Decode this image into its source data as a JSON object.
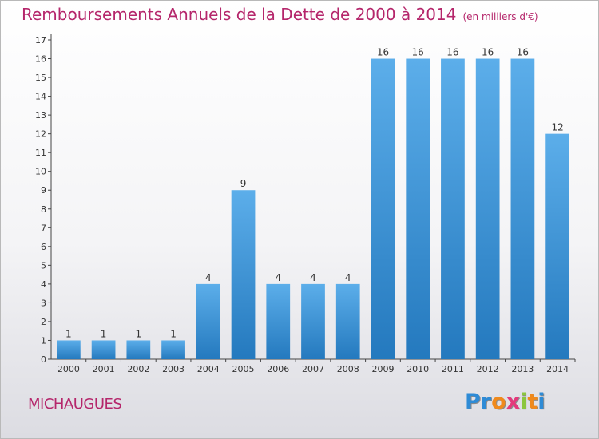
{
  "chart_data": {
    "type": "bar",
    "title": "Remboursements Annuels de la Dette de 2000 à 2014",
    "unit": "(en milliers d'€)",
    "categories": [
      "2000",
      "2001",
      "2002",
      "2003",
      "2004",
      "2005",
      "2006",
      "2007",
      "2008",
      "2009",
      "2010",
      "2011",
      "2012",
      "2013",
      "2014"
    ],
    "values": [
      1,
      1,
      1,
      1,
      4,
      9,
      4,
      4,
      4,
      16,
      16,
      16,
      16,
      16,
      12
    ],
    "ylim": [
      0,
      17
    ],
    "yticks": [
      0,
      1,
      2,
      3,
      4,
      5,
      6,
      7,
      8,
      9,
      10,
      11,
      12,
      13,
      14,
      15,
      16,
      17
    ],
    "grid": false,
    "bar_color": "#3e97dd"
  },
  "commune": "MICHAUGUES",
  "logo": {
    "letters": [
      "P",
      "r",
      "o",
      "x",
      "i",
      "t",
      "i"
    ],
    "colors": [
      "#2e8bd6",
      "#2e8bd6",
      "#f08a1c",
      "#e43a7c",
      "#8cc63f",
      "#f08a1c",
      "#2e8bd6"
    ]
  }
}
